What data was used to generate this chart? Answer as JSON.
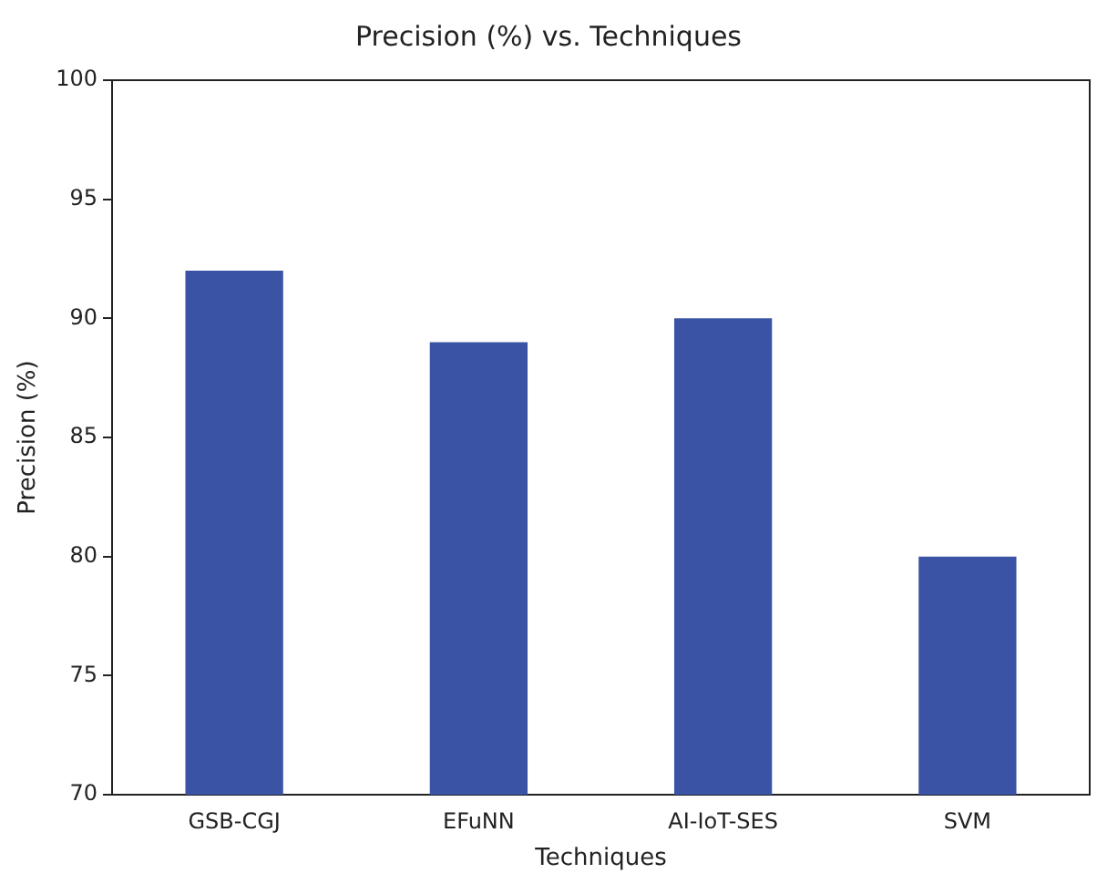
{
  "chart_data": {
    "type": "bar",
    "title": "Precision (%) vs. Techniques",
    "xlabel": "Techniques",
    "ylabel": "Precision (%)",
    "categories": [
      "GSB-CGJ",
      "EFuNN",
      "AI-IoT-SES",
      "SVM"
    ],
    "values": [
      92,
      89,
      90,
      80
    ],
    "color": "#3a53a4",
    "ylim": [
      70,
      100
    ],
    "yticks": [
      70,
      75,
      80,
      85,
      90,
      95,
      100
    ],
    "grid": false,
    "legend": false
  }
}
